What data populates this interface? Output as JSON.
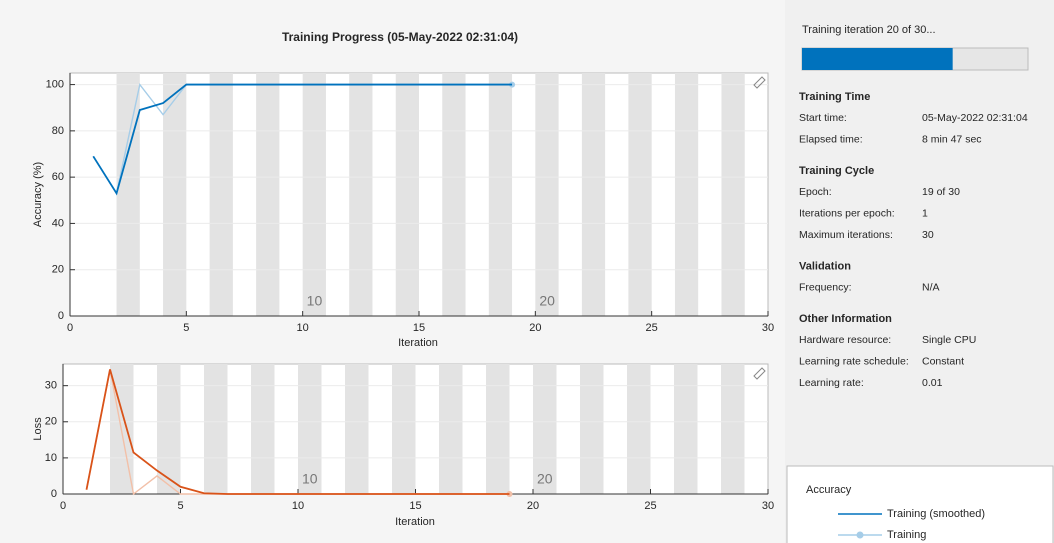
{
  "chart_data": [
    {
      "type": "line",
      "title": "Training Progress (05-May-2022 02:31:04)",
      "x_label": "Iteration",
      "y_label": "Accuracy (%)",
      "x": [
        1,
        2,
        3,
        4,
        5,
        6,
        7,
        8,
        9,
        10,
        11,
        12,
        13,
        14,
        15,
        16,
        17,
        18,
        19
      ],
      "series": [
        {
          "name": "Training (smoothed)",
          "color": "#0072bd",
          "values": [
            69,
            53,
            89,
            92,
            100,
            100,
            100,
            100,
            100,
            100,
            100,
            100,
            100,
            100,
            100,
            100,
            100,
            100,
            100
          ]
        },
        {
          "name": "Training",
          "color": "#a6cde8",
          "values": [
            69,
            53,
            100,
            87,
            100,
            100,
            100,
            100,
            100,
            100,
            100,
            100,
            100,
            100,
            100,
            100,
            100,
            100,
            100
          ]
        }
      ],
      "xlim": [
        0,
        30
      ],
      "xticks": [
        0,
        5,
        10,
        15,
        20,
        25,
        30
      ],
      "ylim": [
        0,
        105
      ],
      "yticks": [
        0,
        20,
        40,
        60,
        80,
        100
      ],
      "annotations": [
        {
          "text": "10",
          "x": 10
        },
        {
          "text": "20",
          "x": 20
        }
      ],
      "legend_title": "Accuracy"
    },
    {
      "type": "line",
      "x_label": "Iteration",
      "y_label": "Loss",
      "x": [
        1,
        2,
        3,
        4,
        5,
        6,
        7,
        8,
        9,
        10,
        11,
        12,
        13,
        14,
        15,
        16,
        17,
        18,
        19
      ],
      "series": [
        {
          "name": "Training (smoothed)",
          "color": "#d95319",
          "values": [
            1.2,
            34.5,
            11.5,
            6.5,
            2,
            0.2,
            0,
            0,
            0,
            0,
            0,
            0,
            0,
            0,
            0,
            0,
            0,
            0,
            0
          ]
        },
        {
          "name": "Training",
          "color": "#f2c0a8",
          "values": [
            1.2,
            34.5,
            0,
            5,
            0,
            0,
            0,
            0,
            0,
            0,
            0,
            0,
            0,
            0,
            0,
            0,
            0,
            0,
            0
          ]
        }
      ],
      "xlim": [
        0,
        30
      ],
      "xticks": [
        0,
        5,
        10,
        15,
        20,
        25,
        30
      ],
      "ylim": [
        0,
        36
      ],
      "yticks": [
        0,
        10,
        20,
        30
      ],
      "annotations": [
        {
          "text": "10",
          "x": 10
        },
        {
          "text": "20",
          "x": 20
        }
      ]
    }
  ],
  "panel": {
    "status": "Training iteration 20 of 30...",
    "progress": {
      "current": 20,
      "total": 30
    },
    "sections": [
      {
        "title": "Training Time",
        "rows": [
          [
            "Start time:",
            "05-May-2022 02:31:04"
          ],
          [
            "Elapsed time:",
            "8 min 47 sec"
          ]
        ]
      },
      {
        "title": "Training Cycle",
        "rows": [
          [
            "Epoch:",
            "19 of 30"
          ],
          [
            "Iterations per epoch:",
            "1"
          ],
          [
            "Maximum iterations:",
            "30"
          ]
        ]
      },
      {
        "title": "Validation",
        "rows": [
          [
            "Frequency:",
            "N/A"
          ]
        ]
      },
      {
        "title": "Other Information",
        "rows": [
          [
            "Hardware resource:",
            "Single CPU"
          ],
          [
            "Learning rate schedule:",
            "Constant"
          ],
          [
            "Learning rate:",
            "0.01"
          ]
        ]
      }
    ]
  }
}
